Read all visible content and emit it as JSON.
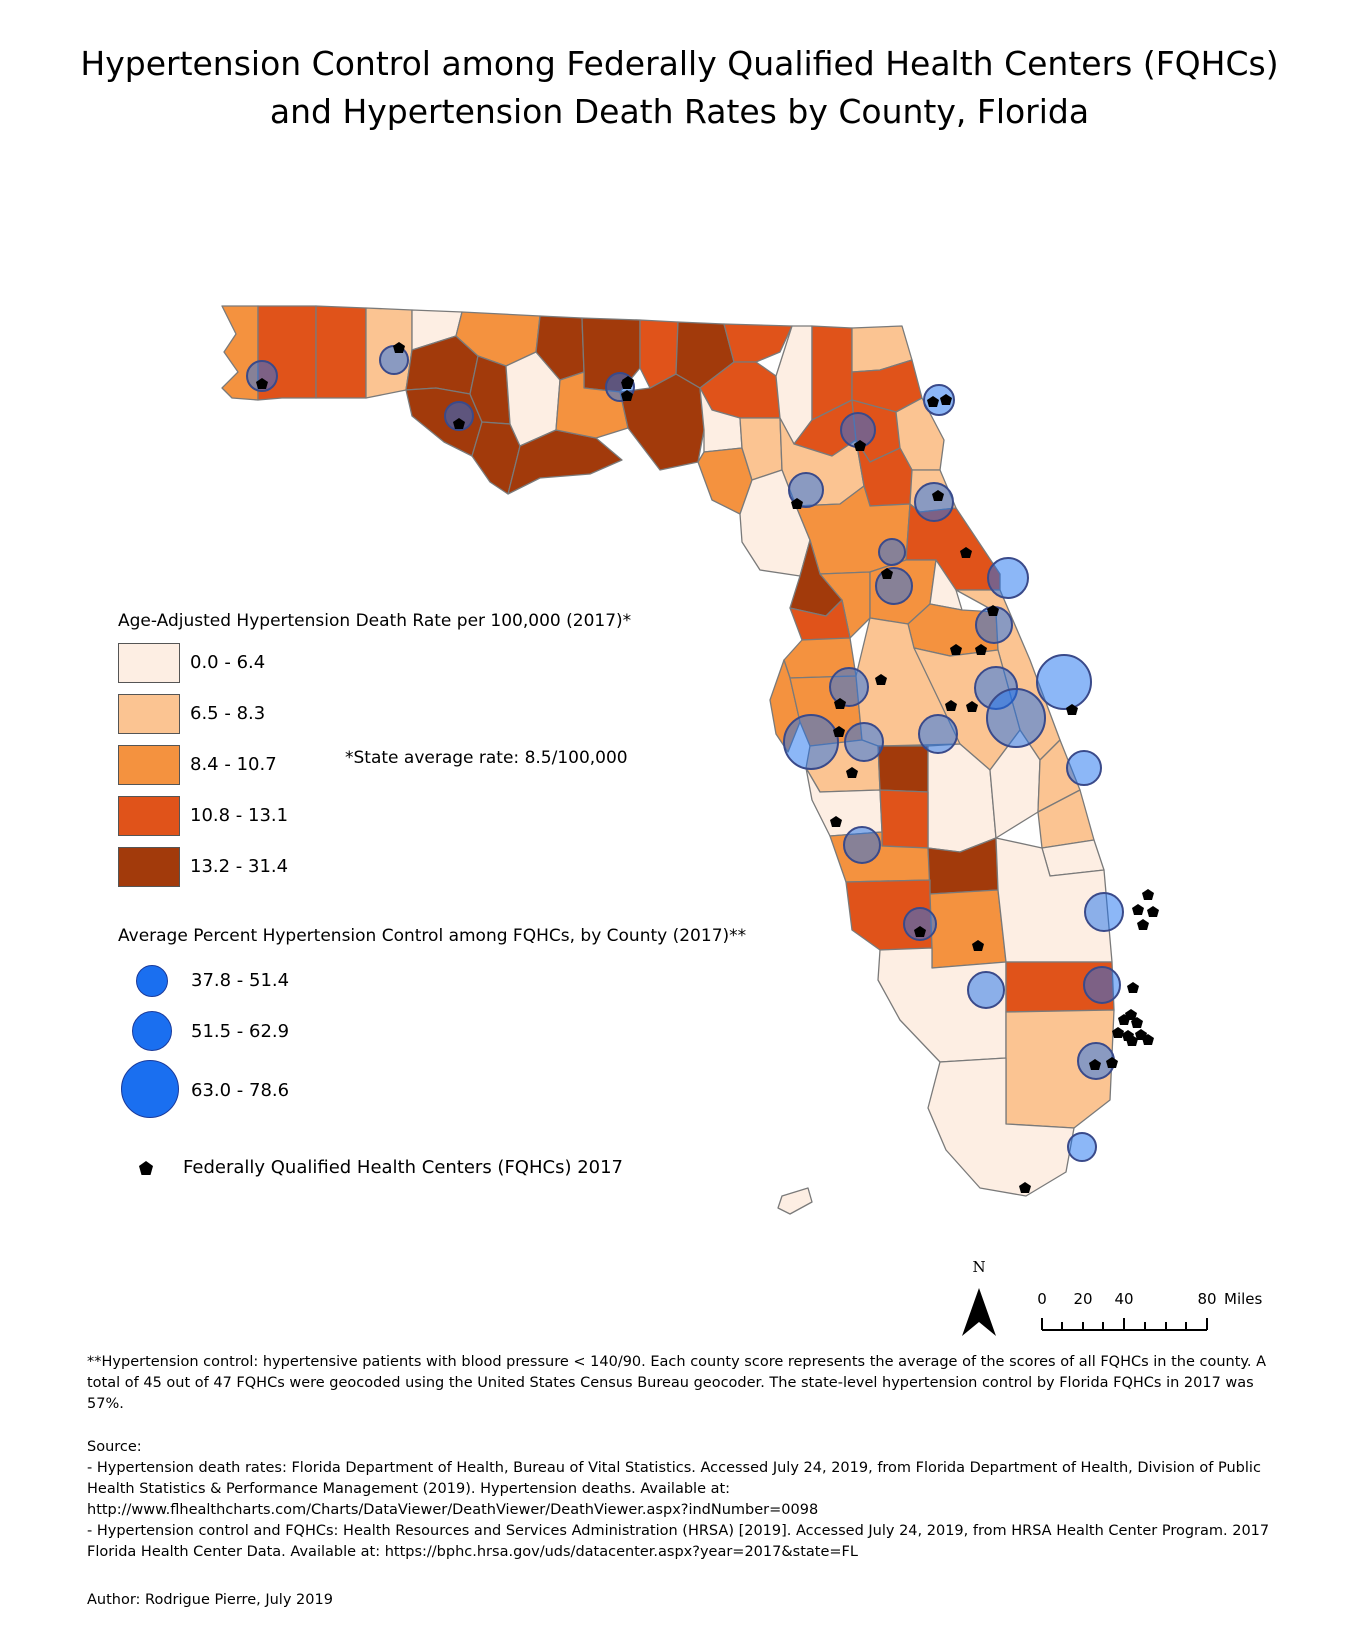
{
  "title": {
    "line1": "Hypertension Control among Federally Qualified Health Centers (FQHCs)",
    "line2": "and Hypertension Death Rates by County, Florida"
  },
  "colors": {
    "class1": "#fdeee3",
    "class2": "#fbc492",
    "class3": "#f4923f",
    "class4": "#e0531a",
    "class5": "#a23a0b",
    "county_border": "#7a7a7a",
    "bubble_fill": "#1a6ff0",
    "fqhc_marker": "#000000"
  },
  "death_rate_legend": {
    "title": "Age-Adjusted Hypertension Death Rate per 100,000 (2017)*",
    "classes": [
      "0.0 - 6.4",
      "6.5 - 8.3",
      "8.4 - 10.7",
      "10.8 - 13.1",
      "13.2 - 31.4"
    ]
  },
  "state_note": "*State average rate: 8.5/100,000",
  "control_legend": {
    "title": "Average Percent Hypertension Control among FQHCs, by County (2017)**",
    "classes": [
      "37.8 - 51.4",
      "51.5 - 62.9",
      "63.0 - 78.6"
    ]
  },
  "fqhc_legend": "Federally Qualified Health Centers (FQHCs) 2017",
  "north_label": "N",
  "scale": {
    "ticks": [
      "0",
      "20",
      "40",
      "80"
    ],
    "unit": "Miles"
  },
  "footnote": "**Hypertension control: hypertensive patients with blood pressure < 140/90. Each county score represents the average of the scores of all FQHCs in the county. A total of 45 out of 47 FQHCs were geocoded using the United States Census Bureau geocoder. The state-level hypertension control by Florida FQHCs in 2017 was 57%.",
  "source": {
    "heading": "Source:",
    "line1": "- Hypertension death rates: Florida Department of Health, Bureau of Vital Statistics. Accessed July 24, 2019, from Florida Department of Health, Division of Public Health Statistics & Performance Management (2019). Hypertension deaths. Available at:",
    "line2": "http://www.flhealthcharts.com/Charts/DataViewer/DeathViewer/DeathViewer.aspx?indNumber=0098",
    "line3": "- Hypertension control and FQHCs: Health Resources and Services Administration (HRSA) [2019]. Accessed July 24, 2019, from HRSA Health Center Program. 2017 Florida Health Center Data. Available at: https://bphc.hrsa.gov/uds/datacenter.aspx?year=2017&state=FL"
  },
  "author": "Author: Rodrigue Pierre, July 2019"
}
